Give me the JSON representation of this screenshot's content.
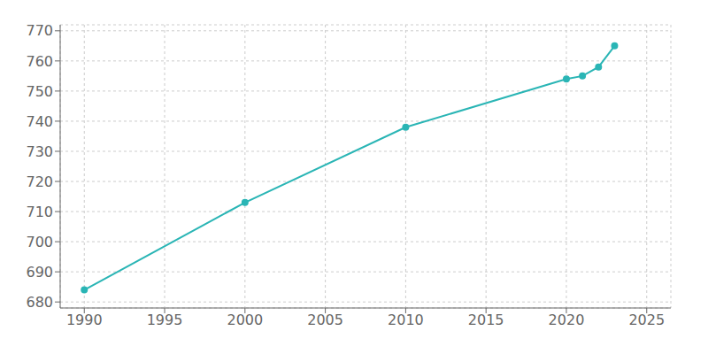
{
  "chart_data": {
    "type": "line",
    "x": [
      1990,
      2000,
      2010,
      2020,
      2021,
      2022,
      2023
    ],
    "values": [
      684,
      713,
      738,
      754,
      755,
      758,
      765
    ],
    "color": "#2ab5b5",
    "marker": "circle",
    "xlim": [
      1988.5,
      2026.5
    ],
    "ylim": [
      678,
      772
    ],
    "xticks": [
      1990,
      1995,
      2000,
      2005,
      2010,
      2015,
      2020,
      2025
    ],
    "yticks": [
      680,
      690,
      700,
      710,
      720,
      730,
      740,
      750,
      760,
      770
    ],
    "grid": true
  }
}
